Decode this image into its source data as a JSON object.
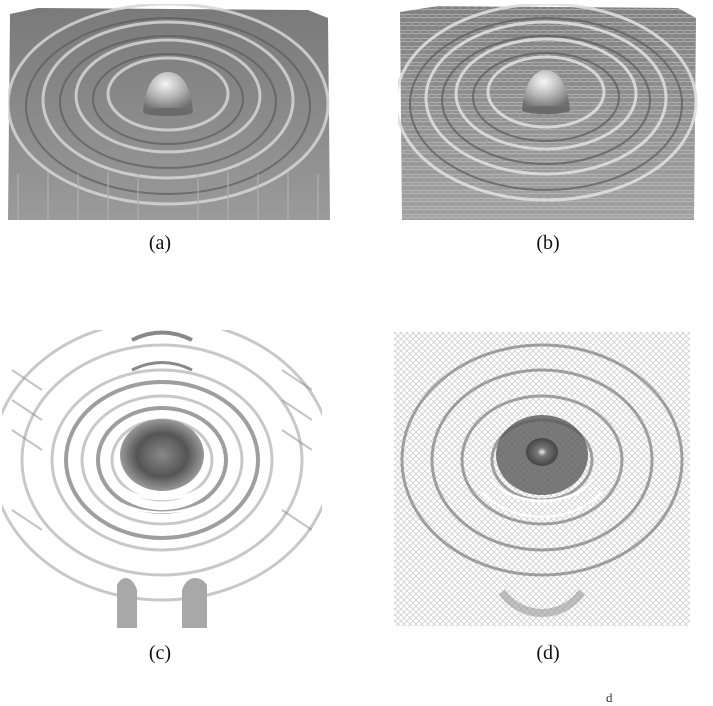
{
  "figure": {
    "panels": [
      {
        "id": "a",
        "caption": "(a)",
        "style": "surface-smooth"
      },
      {
        "id": "b",
        "caption": "(b)",
        "style": "surface-noisy"
      },
      {
        "id": "c",
        "caption": "(c)",
        "style": "contour-smooth"
      },
      {
        "id": "d",
        "caption": "(d)",
        "style": "contour-noisy"
      }
    ],
    "page_fragment": "d"
  }
}
